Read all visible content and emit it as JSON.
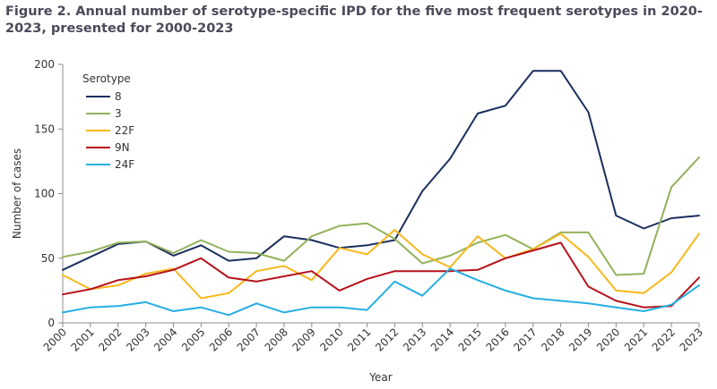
{
  "chart_data": {
    "type": "line",
    "title": "Figure 2. Annual number of serotype-specific  IPD for the five most frequent serotypes  in 2020-2023, presented for 2000-2023",
    "xlabel": "Year",
    "ylabel": "Number of cases",
    "ylim": [
      0,
      200
    ],
    "yticks": [
      0,
      50,
      100,
      150,
      200
    ],
    "grid": false,
    "legend_title": "Serotype",
    "legend_position": "top-left",
    "x": [
      "2000",
      "2001",
      "2002",
      "2003",
      "2004",
      "2005",
      "2006",
      "2007",
      "2008",
      "2009",
      "2010",
      "2011",
      "2012",
      "2013",
      "2014",
      "2015",
      "2016",
      "2017",
      "2018",
      "2019",
      "2020",
      "2021",
      "2022",
      "2023"
    ],
    "series": [
      {
        "name": "8",
        "color": "#1b2f5e",
        "values": [
          41,
          51,
          61,
          63,
          52,
          60,
          48,
          50,
          67,
          64,
          58,
          60,
          64,
          102,
          127,
          162,
          168,
          195,
          195,
          163,
          83,
          73,
          81,
          83
        ]
      },
      {
        "name": "3",
        "color": "#92b25a",
        "values": [
          51,
          55,
          62,
          63,
          54,
          64,
          55,
          54,
          48,
          67,
          75,
          77,
          65,
          46,
          52,
          62,
          68,
          57,
          70,
          70,
          37,
          38,
          105,
          128
        ]
      },
      {
        "name": "22F",
        "color": "#f7b81c",
        "values": [
          37,
          26,
          29,
          38,
          42,
          19,
          23,
          40,
          44,
          33,
          58,
          53,
          72,
          53,
          43,
          67,
          50,
          57,
          69,
          51,
          25,
          23,
          39,
          69
        ]
      },
      {
        "name": "9N",
        "color": "#b5121b",
        "values": [
          22,
          26,
          33,
          36,
          41,
          50,
          35,
          32,
          36,
          40,
          25,
          34,
          40,
          40,
          40,
          41,
          50,
          56,
          62,
          28,
          17,
          12,
          13,
          35
        ]
      },
      {
        "name": "24F",
        "color": "#26aee4",
        "values": [
          8,
          12,
          13,
          16,
          9,
          12,
          6,
          15,
          8,
          12,
          12,
          10,
          32,
          21,
          42,
          33,
          25,
          19,
          17,
          15,
          12,
          9,
          14,
          29
        ]
      }
    ]
  }
}
